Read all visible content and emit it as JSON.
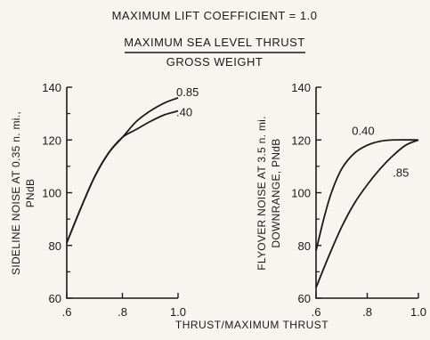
{
  "header": {
    "line1": "MAXIMUM LIFT COEFFICIENT = 1.0",
    "ratio_numerator": "MAXIMUM SEA LEVEL THRUST",
    "ratio_denominator": "GROSS WEIGHT"
  },
  "xlabel": "THRUST/MAXIMUM THRUST",
  "chart_data": [
    {
      "type": "line",
      "ylabel_line1": "SIDELINE NOISE AT 0.35 n. mi.,",
      "ylabel_line2": "PNdB",
      "xlim": [
        0.6,
        1.0
      ],
      "ylim": [
        60,
        140
      ],
      "xticks": [
        ".6",
        ".8",
        "1.0"
      ],
      "yticks": [
        "60",
        "80",
        "100",
        "120",
        "140"
      ],
      "series": [
        {
          "name": "0.85",
          "x": [
            0.6,
            0.65,
            0.7,
            0.75,
            0.8,
            0.85,
            0.9,
            0.95,
            1.0
          ],
          "y": [
            81,
            94,
            106,
            115,
            121,
            127,
            131,
            134,
            136
          ]
        },
        {
          "name": ".40",
          "x": [
            0.6,
            0.65,
            0.7,
            0.75,
            0.8,
            0.85,
            0.9,
            0.95,
            1.0
          ],
          "y": [
            81,
            94,
            106,
            115,
            121,
            124,
            127,
            129.5,
            131
          ]
        }
      ]
    },
    {
      "type": "line",
      "ylabel_line1": "FLYOVER NOISE AT 3.5 n. mi.",
      "ylabel_line2": "DOWNRANGE, PNdB",
      "xlim": [
        0.6,
        1.0
      ],
      "ylim": [
        60,
        140
      ],
      "xticks": [
        ".6",
        ".8",
        "1.0"
      ],
      "yticks": [
        "60",
        "80",
        "100",
        "120",
        "140"
      ],
      "series": [
        {
          "name": "0.40",
          "x": [
            0.6,
            0.63,
            0.66,
            0.7,
            0.75,
            0.8,
            0.85,
            0.9,
            1.0
          ],
          "y": [
            78,
            90,
            100,
            109,
            115,
            118,
            119.5,
            120,
            120
          ]
        },
        {
          "name": ".85",
          "x": [
            0.6,
            0.65,
            0.7,
            0.75,
            0.8,
            0.85,
            0.9,
            0.95,
            1.0
          ],
          "y": [
            64,
            76,
            87,
            96,
            103,
            109,
            114,
            118,
            120
          ]
        }
      ]
    }
  ]
}
